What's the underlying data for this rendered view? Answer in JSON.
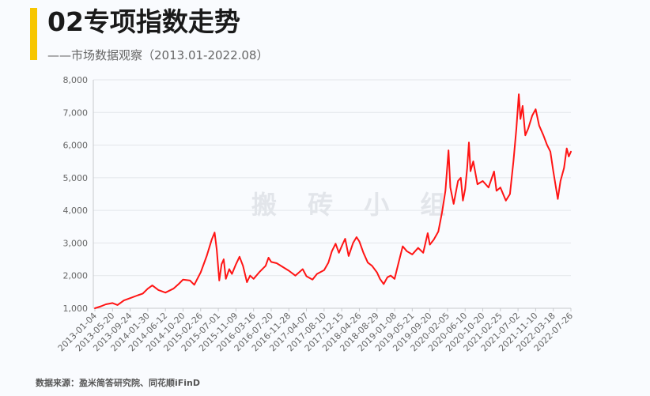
{
  "header": {
    "title": "02专项指数走势",
    "subtitle": "——市场数据观察（2013.01-2022.08）",
    "accent_color": "#f7c600"
  },
  "watermark": "搬 砖 小 组",
  "source": "数据来源：盈米简答研究院、同花顺iFinD",
  "chart_data": {
    "type": "line",
    "ylim": [
      1000,
      8000
    ],
    "y_ticks": [
      1000,
      2000,
      3000,
      4000,
      5000,
      6000,
      7000,
      8000
    ],
    "y_tick_labels": [
      "1,000",
      "2,000",
      "3,000",
      "4,000",
      "5,000",
      "6,000",
      "7,000",
      "8,000"
    ],
    "x_ticks": [
      "2013-01-04",
      "2013-05-20",
      "2013-09-24",
      "2014-01-30",
      "2014-06-12",
      "2014-10-20",
      "2015-02-26",
      "2015-07-01",
      "2015-11-09",
      "2016-03-16",
      "2016-07-20",
      "2016-11-28",
      "2017-04-07",
      "2017-08-10",
      "2017-12-15",
      "2018-04-26",
      "2018-08-29",
      "2019-01-08",
      "2019-05-21",
      "2019-09-20",
      "2020-02-05",
      "2020-06-10",
      "2020-10-20",
      "2021-02-25",
      "2021-07-02",
      "2021-11-10",
      "2022-03-18",
      "2022-07-26"
    ],
    "grid_horizontal": true,
    "line_color": "#ff1414",
    "series": [
      {
        "x": [
          "2013-01-04",
          "2013-02-20",
          "2013-03-30",
          "2013-05-20",
          "2013-06-25",
          "2013-08-10",
          "2013-09-24",
          "2013-11-20",
          "2013-12-25",
          "2014-01-30",
          "2014-03-05",
          "2014-04-20",
          "2014-06-12",
          "2014-08-10",
          "2014-09-20",
          "2014-10-20",
          "2014-12-10",
          "2015-01-10",
          "2015-02-26",
          "2015-04-10",
          "2015-05-15",
          "2015-06-05",
          "2015-06-20",
          "2015-07-08",
          "2015-07-25",
          "2015-08-10",
          "2015-08-26",
          "2015-09-20",
          "2015-10-10",
          "2015-11-09",
          "2015-12-05",
          "2015-12-30",
          "2016-01-28",
          "2016-02-20",
          "2016-03-16",
          "2016-04-25",
          "2016-06-10",
          "2016-07-01",
          "2016-07-20",
          "2016-08-30",
          "2016-10-20",
          "2016-11-28",
          "2017-01-15",
          "2017-03-10",
          "2017-04-07",
          "2017-05-20",
          "2017-06-20",
          "2017-08-10",
          "2017-09-10",
          "2017-10-05",
          "2017-11-01",
          "2017-11-25",
          "2017-12-20",
          "2018-01-10",
          "2018-02-05",
          "2018-03-10",
          "2018-04-05",
          "2018-04-26",
          "2018-05-25",
          "2018-06-25",
          "2018-07-25",
          "2018-08-29",
          "2018-09-20",
          "2018-10-18",
          "2018-11-15",
          "2018-12-10",
          "2019-01-08",
          "2019-02-10",
          "2019-03-10",
          "2019-04-10",
          "2019-05-21",
          "2019-07-01",
          "2019-08-05",
          "2019-09-05",
          "2019-09-20",
          "2019-10-20",
          "2019-11-25",
          "2019-12-25",
          "2020-01-20",
          "2020-02-12",
          "2020-02-25",
          "2020-03-20",
          "2020-04-20",
          "2020-05-10",
          "2020-05-25",
          "2020-06-10",
          "2020-06-25",
          "2020-07-08",
          "2020-07-20",
          "2020-08-10",
          "2020-09-10",
          "2020-10-20",
          "2020-12-01",
          "2021-01-10",
          "2021-01-28",
          "2021-02-25",
          "2021-04-05",
          "2021-05-05",
          "2021-05-30",
          "2021-06-20",
          "2021-07-08",
          "2021-07-20",
          "2021-08-05",
          "2021-08-25",
          "2021-09-15",
          "2021-10-15",
          "2021-11-10",
          "2021-12-05",
          "2022-01-05",
          "2022-02-01",
          "2022-02-25",
          "2022-03-18",
          "2022-04-20",
          "2022-05-10",
          "2022-06-05",
          "2022-06-25",
          "2022-07-10",
          "2022-07-26"
        ],
        "y": [
          1000,
          1060,
          1120,
          1160,
          1100,
          1240,
          1310,
          1400,
          1450,
          1600,
          1700,
          1560,
          1480,
          1600,
          1750,
          1880,
          1850,
          1720,
          2100,
          2600,
          3100,
          3320,
          2800,
          1850,
          2350,
          2500,
          1900,
          2200,
          2050,
          2350,
          2580,
          2300,
          1800,
          2000,
          1900,
          2100,
          2300,
          2550,
          2420,
          2380,
          2250,
          2150,
          2000,
          2200,
          1980,
          1880,
          2050,
          2170,
          2400,
          2750,
          2980,
          2700,
          2950,
          3130,
          2600,
          3000,
          3180,
          3050,
          2700,
          2400,
          2300,
          2100,
          1900,
          1740,
          1950,
          2000,
          1900,
          2450,
          2900,
          2750,
          2650,
          2850,
          2700,
          3300,
          2950,
          3100,
          3350,
          3950,
          4600,
          5840,
          4700,
          4200,
          4900,
          5000,
          4300,
          4650,
          5300,
          6080,
          5200,
          5500,
          4800,
          4900,
          4700,
          5190,
          4600,
          4700,
          4300,
          4500,
          5500,
          6500,
          7560,
          6800,
          7200,
          6300,
          6500,
          6900,
          7100,
          6600,
          6300,
          6000,
          5800,
          5200,
          4350,
          4900,
          5300,
          5900,
          5650,
          5800
        ]
      }
    ]
  }
}
